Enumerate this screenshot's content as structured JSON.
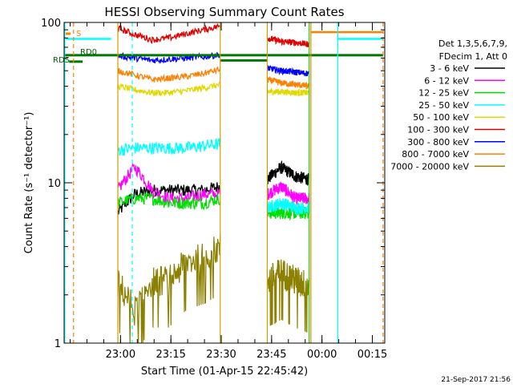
{
  "chart_data": {
    "type": "line",
    "title": "HESSI Observing Summary Count Rates",
    "xlabel": "Start Time (01-Apr-15 22:45:42)",
    "ylabel": "Count Rate (s⁻¹ detector⁻¹)",
    "yscale": "log",
    "ylim": [
      1,
      100
    ],
    "xlim_minutes_after_start": [
      -2.5,
      93
    ],
    "x_ticks": [
      {
        "label": "23:00",
        "min": 14.3
      },
      {
        "label": "23:15",
        "min": 29.3
      },
      {
        "label": "23:30",
        "min": 44.3
      },
      {
        "label": "23:45",
        "min": 59.3
      },
      {
        "label": "00:00",
        "min": 74.3
      },
      {
        "label": "00:15",
        "min": 89.3
      }
    ],
    "y_ticks": [
      {
        "label": "1",
        "value": 1
      },
      {
        "label": "10",
        "value": 10
      },
      {
        "label": "100",
        "value": 100
      }
    ],
    "legend": {
      "placement": "right",
      "header": [
        "Det 1,3,5,6,7,9,",
        "FDecim 1, Att 0"
      ],
      "items": [
        {
          "label": "3 - 6 keV",
          "color": "#000000"
        },
        {
          "label": "6 - 12 keV",
          "color": "#ff00ff"
        },
        {
          "label": "12 - 25 keV",
          "color": "#00dd00"
        },
        {
          "label": "25 - 50 keV",
          "color": "#00ffff"
        },
        {
          "label": "50 - 100 keV",
          "color": "#e0d800"
        },
        {
          "label": "100 - 300 keV",
          "color": "#e00000"
        },
        {
          "label": "300 - 800 keV",
          "color": "#0000ff"
        },
        {
          "label": "800 - 7000 keV",
          "color": "#ff8000"
        },
        {
          "label": "7000 - 20000 keV",
          "color": "#8b8000"
        }
      ]
    },
    "flags": [
      {
        "label": "S",
        "color": "#ff8000"
      },
      {
        "label": "RD0",
        "color": "#006600"
      },
      {
        "label": "RDS",
        "color": "#006600"
      }
    ],
    "footer_timestamp": "21-Sep-2017 21:56",
    "segments": [
      {
        "x_start": 13.5,
        "x_end": 44.0
      },
      {
        "x_start": 58.0,
        "x_end": 70.5
      }
    ],
    "series": [
      {
        "name": "3 - 6 keV",
        "color": "#000000",
        "segment_values": [
          [
            6.5,
            8.5,
            9.0,
            9.0,
            9.0,
            9.0,
            9.5
          ],
          [
            10.5,
            12.5,
            11.0,
            10.5
          ]
        ]
      },
      {
        "name": "6 - 12 keV",
        "color": "#ff00ff",
        "segment_values": [
          [
            9.0,
            12.5,
            9.0,
            8.0,
            8.0,
            8.5,
            8.5
          ],
          [
            8.5,
            9.5,
            8.0,
            8.0
          ]
        ]
      },
      {
        "name": "12 - 25 keV",
        "color": "#00dd00",
        "segment_values": [
          [
            7.5,
            8.0,
            8.0,
            7.5,
            7.5,
            7.5,
            8.0
          ],
          [
            6.5,
            6.5,
            6.5,
            6.5
          ]
        ]
      },
      {
        "name": "25 - 50 keV",
        "color": "#00ffff",
        "segment_values": [
          [
            16.0,
            16.5,
            16.5,
            16.5,
            16.5,
            17.0,
            17.5
          ],
          [
            7.0,
            7.5,
            7.0,
            7.0
          ]
        ]
      },
      {
        "name": "50 - 100 keV",
        "color": "#e0d800",
        "segment_values": [
          [
            40.0,
            38.0,
            36.5,
            36.5,
            37.5,
            39.0,
            41.0
          ],
          [
            37.0,
            37.0,
            36.5,
            36.5
          ]
        ]
      },
      {
        "name": "100 - 300 keV",
        "color": "#e00000",
        "segment_values": [
          [
            92.0,
            84.0,
            78.0,
            80.0,
            85.0,
            90.0,
            95.0
          ],
          [
            80.0,
            76.0,
            75.0,
            73.0
          ]
        ]
      },
      {
        "name": "300 - 800 keV",
        "color": "#0000ff",
        "segment_values": [
          [
            62.0,
            60.0,
            58.0,
            59.0,
            60.0,
            61.0,
            63.0
          ],
          [
            52.0,
            50.0,
            49.0,
            48.0
          ]
        ]
      },
      {
        "name": "800 - 7000 keV",
        "color": "#ff8000",
        "segment_values": [
          [
            50.0,
            47.0,
            44.0,
            45.0,
            46.0,
            48.0,
            51.0
          ],
          [
            44.0,
            42.0,
            41.0,
            40.0
          ]
        ]
      },
      {
        "name": "7000 - 20000 keV",
        "color": "#8b8000",
        "segment_values": [
          [
            2.4,
            1.6,
            2.5,
            2.5,
            3.2,
            3.5,
            4.0
          ],
          [
            2.5,
            2.8,
            2.5,
            2.3
          ]
        ]
      }
    ]
  }
}
